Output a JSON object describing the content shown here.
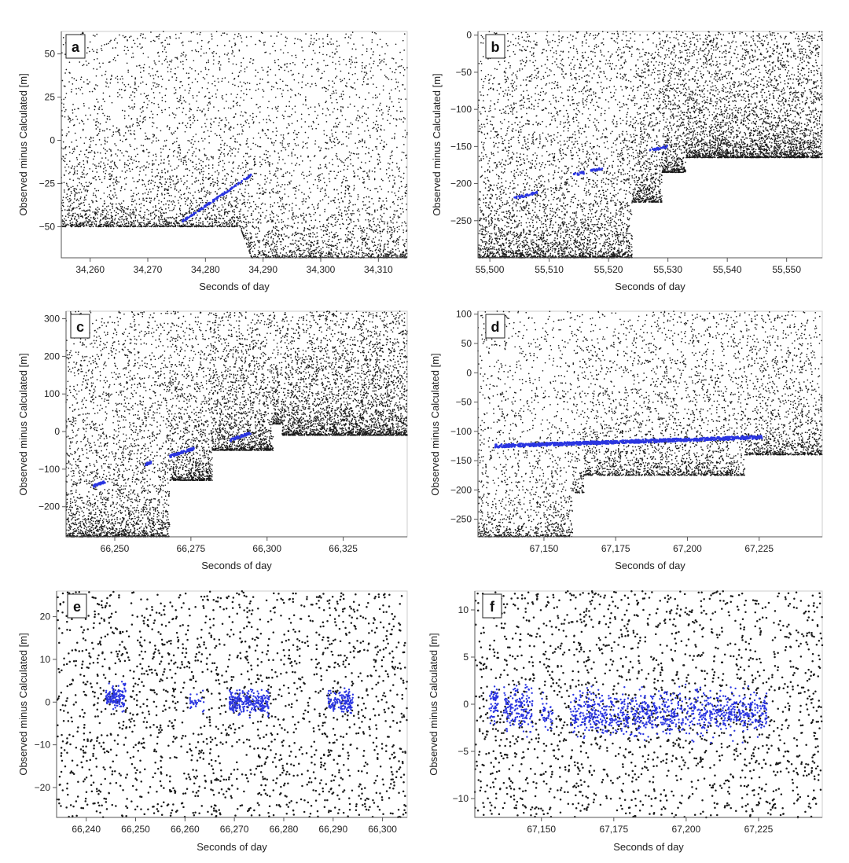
{
  "colors": {
    "noise": "#1a1a1a",
    "signal": "#2a35e0",
    "axis": "#555555",
    "frame": "#cccccc"
  },
  "chart_data": [
    {
      "type": "scatter",
      "letter": "a",
      "xlabel": "Seconds of day",
      "ylabel": "Observed minus Calculated  [m]",
      "xlim": [
        34255,
        34315
      ],
      "ylim": [
        -68,
        63
      ],
      "xticks": [
        34260,
        34270,
        34280,
        34290,
        34300,
        34310
      ],
      "xtick_labels": [
        "34,260",
        "34,270",
        "34,280",
        "34,290",
        "34,300",
        "34,310"
      ],
      "yticks": [
        -50,
        -25,
        0,
        25,
        50
      ],
      "ytick_labels": [
        "−50",
        "−25",
        "0",
        "25",
        "50"
      ],
      "noise_floor": [
        [
          34255,
          -50
        ],
        [
          34286,
          -50
        ],
        [
          34288,
          -68
        ],
        [
          34315,
          -68
        ]
      ],
      "noise_density": "medium",
      "signal_segments": [
        [
          34276,
          -47,
          34288,
          -20
        ]
      ],
      "signal_width": 2.5
    },
    {
      "type": "scatter",
      "letter": "b",
      "xlabel": "Seconds of day",
      "ylabel": "Observed minus Calculated  [m]",
      "xlim": [
        55498,
        55556
      ],
      "ylim": [
        -300,
        5
      ],
      "xticks": [
        55500,
        55510,
        55520,
        55530,
        55540,
        55550
      ],
      "xtick_labels": [
        "55,500",
        "55,510",
        "55,520",
        "55,530",
        "55,540",
        "55,550"
      ],
      "yticks": [
        -250,
        -200,
        -150,
        -100,
        -50,
        0
      ],
      "ytick_labels": [
        "−250",
        "−200",
        "−150",
        "−100",
        "−50",
        "0"
      ],
      "noise_floor": [
        [
          55498,
          -300
        ],
        [
          55524,
          -300
        ],
        [
          55524,
          -225
        ],
        [
          55529,
          -225
        ],
        [
          55529,
          -185
        ],
        [
          55533,
          -185
        ],
        [
          55533,
          -165
        ],
        [
          55556,
          -165
        ]
      ],
      "noise_density": "high",
      "signal_segments": [
        [
          55504,
          -220,
          55508,
          -212
        ],
        [
          55514,
          -188,
          55516,
          -185
        ],
        [
          55517,
          -183,
          55519,
          -180
        ],
        [
          55527,
          -155,
          55530,
          -150
        ]
      ],
      "signal_width": 3
    },
    {
      "type": "scatter",
      "letter": "c",
      "xlabel": "Seconds of day",
      "ylabel": "Observed minus Calculated  [m]",
      "xlim": [
        66234,
        66346
      ],
      "ylim": [
        -280,
        320
      ],
      "xticks": [
        66250,
        66275,
        66300,
        66325
      ],
      "xtick_labels": [
        "66,250",
        "66,275",
        "66,300",
        "66,325"
      ],
      "yticks": [
        -200,
        -100,
        0,
        100,
        200,
        300
      ],
      "ytick_labels": [
        "−200",
        "−100",
        "0",
        "100",
        "200",
        "300"
      ],
      "noise_floor": [
        [
          66234,
          -280
        ],
        [
          66268,
          -280
        ],
        [
          66268,
          -130
        ],
        [
          66282,
          -130
        ],
        [
          66282,
          -50
        ],
        [
          66302,
          -50
        ],
        [
          66302,
          20
        ],
        [
          66305,
          20
        ],
        [
          66305,
          -10
        ],
        [
          66346,
          -10
        ]
      ],
      "noise_density": "high",
      "signal_segments": [
        [
          66243,
          -145,
          66247,
          -133
        ],
        [
          66260,
          -87,
          66262,
          -83
        ],
        [
          66268,
          -66,
          66276,
          -45
        ],
        [
          66288,
          -23,
          66295,
          -2
        ]
      ],
      "signal_width": 3
    },
    {
      "type": "scatter",
      "letter": "d",
      "xlabel": "Seconds of day",
      "ylabel": "Observed minus Calculated  [m]",
      "xlim": [
        67127,
        67247
      ],
      "ylim": [
        -280,
        105
      ],
      "xticks": [
        67150,
        67175,
        67200,
        67225
      ],
      "xtick_labels": [
        "67,150",
        "67,175",
        "67,200",
        "67,225"
      ],
      "yticks": [
        -250,
        -200,
        -150,
        -100,
        -50,
        0,
        50,
        100
      ],
      "ytick_labels": [
        "−250",
        "−200",
        "−150",
        "−100",
        "−50",
        "0",
        "50",
        "100"
      ],
      "noise_floor": [
        [
          67127,
          -280
        ],
        [
          67160,
          -280
        ],
        [
          67160,
          -205
        ],
        [
          67164,
          -205
        ],
        [
          67164,
          -175
        ],
        [
          67220,
          -175
        ],
        [
          67220,
          -140
        ],
        [
          67247,
          -140
        ]
      ],
      "noise_density": "medium",
      "signal_segments": [
        [
          67133,
          -125,
          67226,
          -110
        ]
      ],
      "signal_width": 4
    },
    {
      "type": "scatter",
      "letter": "e",
      "xlabel": "Seconds of day",
      "ylabel": "Observed minus Calculated  [m]",
      "xlim": [
        66234,
        66305
      ],
      "ylim": [
        -27,
        26
      ],
      "xticks": [
        66240,
        66250,
        66260,
        66270,
        66280,
        66290,
        66300
      ],
      "xtick_labels": [
        "66,240",
        "66,250",
        "66,260",
        "66,270",
        "66,280",
        "66,290",
        "66,300"
      ],
      "yticks": [
        -20,
        -10,
        0,
        10,
        20
      ],
      "ytick_labels": [
        "−20",
        "−10",
        "0",
        "10",
        "20"
      ],
      "noise_floor": [
        [
          66234,
          -27
        ],
        [
          66305,
          -27
        ]
      ],
      "noise_density": "sparse",
      "signal_clusters": [
        [
          66244,
          66248,
          -3,
          5,
          140
        ],
        [
          66261,
          66264,
          -3,
          3,
          30
        ],
        [
          66269,
          66277,
          -4,
          4,
          260
        ],
        [
          66289,
          66294,
          -4,
          4,
          130
        ]
      ]
    },
    {
      "type": "scatter",
      "letter": "f",
      "xlabel": "Seconds of day",
      "ylabel": "Observed minus Calculated  [m]",
      "xlim": [
        67127,
        67247
      ],
      "ylim": [
        -12,
        12
      ],
      "xticks": [
        67150,
        67175,
        67200,
        67225
      ],
      "xtick_labels": [
        "67,150",
        "67,175",
        "67,200",
        "67,225"
      ],
      "yticks": [
        -10,
        -5,
        0,
        5,
        10
      ],
      "ytick_labels": [
        "−10",
        "−5",
        "0",
        "5",
        "10"
      ],
      "noise_floor": [
        [
          67127,
          -12
        ],
        [
          67247,
          -12
        ]
      ],
      "noise_density": "sparse",
      "signal_clusters": [
        [
          67132,
          67135,
          -3,
          3,
          60
        ],
        [
          67137,
          67147,
          -4,
          3,
          160
        ],
        [
          67150,
          67154,
          -4,
          2,
          40
        ],
        [
          67160,
          67228,
          -4.5,
          2.5,
          900
        ]
      ]
    }
  ]
}
